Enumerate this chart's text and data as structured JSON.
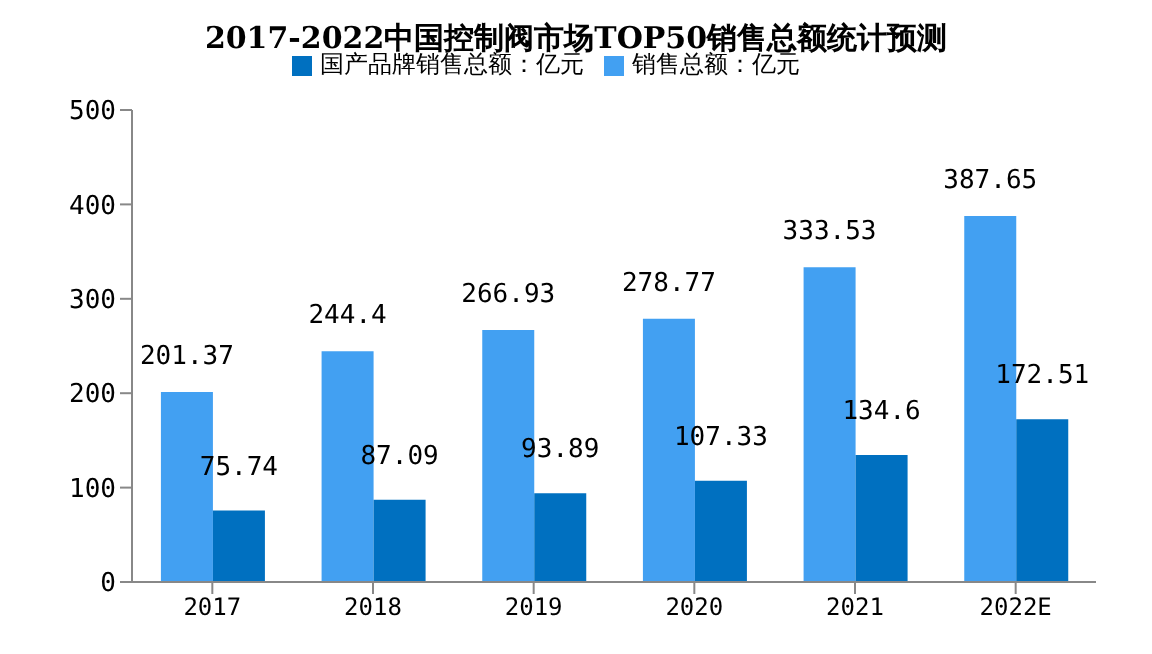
{
  "chart_data": {
    "type": "bar",
    "title": "2017-2022中国控制阀市场TOP50销售总额统计预测",
    "categories": [
      "2017",
      "2018",
      "2019",
      "2020",
      "2021",
      "2022E"
    ],
    "series": [
      {
        "name": "销售总额：亿元",
        "color": "#42a0f2",
        "values": [
          201.37,
          244.4,
          266.93,
          278.77,
          333.53,
          387.65
        ]
      },
      {
        "name": "国产品牌销售总额：亿元",
        "color": "#0070c0",
        "values": [
          75.74,
          87.09,
          93.89,
          107.33,
          134.6,
          172.51
        ]
      }
    ],
    "ylim": [
      0,
      500
    ],
    "yticks": [
      0,
      100,
      200,
      300,
      400,
      500
    ],
    "grid": false,
    "legend": "top",
    "data_labels": true
  }
}
